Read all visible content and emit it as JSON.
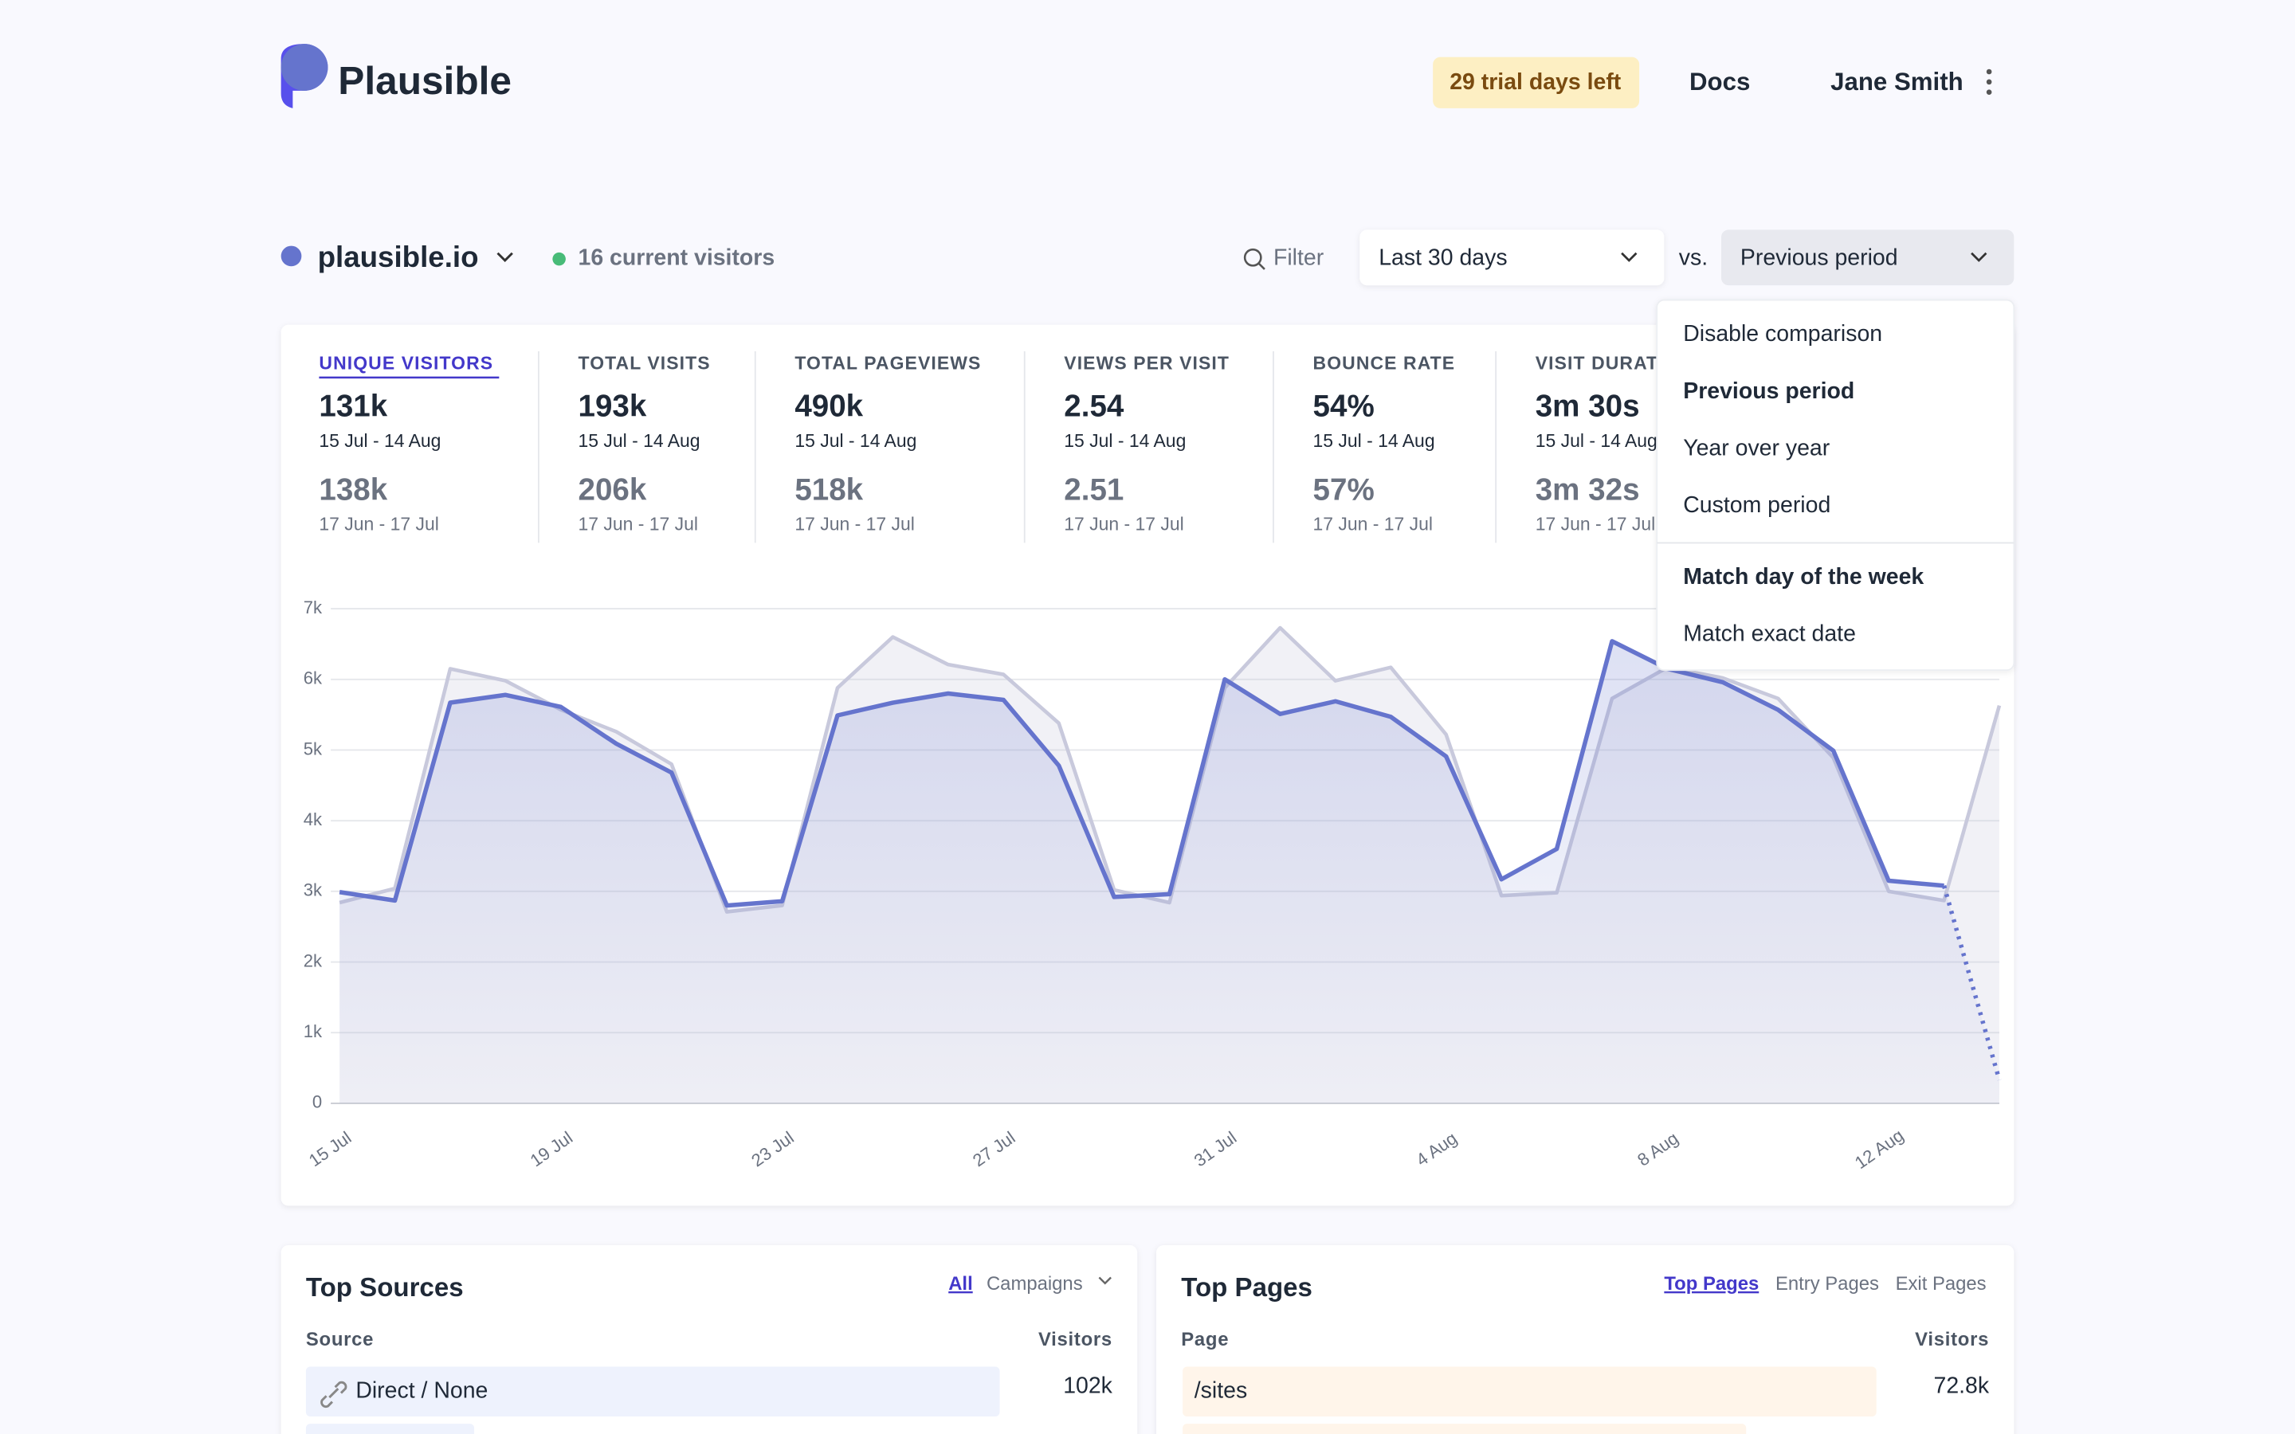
{
  "header": {
    "brand": "Plausible",
    "trial": "29 trial days left",
    "docs": "Docs",
    "user": "Jane Smith"
  },
  "site": {
    "domain": "plausible.io",
    "visitors": "16 current visitors",
    "filter": "Filter",
    "period": "Last 30 days",
    "vs": "vs.",
    "comparison": "Previous period"
  },
  "menu": {
    "items": [
      "Disable comparison",
      "Previous period",
      "Year over year",
      "Custom period"
    ],
    "match": [
      "Match day of the week",
      "Match exact date"
    ]
  },
  "metrics": [
    {
      "label": "UNIQUE VISITORS",
      "value": "131k",
      "range": "15 Jul - 14 Aug",
      "prev_value": "138k",
      "prev_range": "17 Jun - 17 Jul"
    },
    {
      "label": "TOTAL VISITS",
      "value": "193k",
      "range": "15 Jul - 14 Aug",
      "prev_value": "206k",
      "prev_range": "17 Jun - 17 Jul"
    },
    {
      "label": "TOTAL PAGEVIEWS",
      "value": "490k",
      "range": "15 Jul - 14 Aug",
      "prev_value": "518k",
      "prev_range": "17 Jun - 17 Jul"
    },
    {
      "label": "VIEWS PER VISIT",
      "value": "2.54",
      "range": "15 Jul - 14 Aug",
      "prev_value": "2.51",
      "prev_range": "17 Jun - 17 Jul"
    },
    {
      "label": "BOUNCE RATE",
      "value": "54%",
      "range": "15 Jul - 14 Aug",
      "prev_value": "57%",
      "prev_range": "17 Jun - 17 Jul"
    },
    {
      "label": "VISIT DURATION",
      "value": "3m 30s",
      "range": "15 Jul - 14 Aug",
      "prev_value": "3m 32s",
      "prev_range": "17 Jun - 17 Jul"
    }
  ],
  "chart_data": {
    "type": "line",
    "categories": [
      "15 Jul",
      null,
      null,
      null,
      "19 Jul",
      null,
      null,
      null,
      "23 Jul",
      null,
      null,
      null,
      "27 Jul",
      null,
      null,
      null,
      "31 Jul",
      null,
      null,
      null,
      "4 Aug",
      null,
      null,
      null,
      "8 Aug",
      null,
      null,
      null,
      "12 Aug",
      null,
      null
    ],
    "series": [
      {
        "color": "#6574cd",
        "values": [
          2990,
          2870,
          5670,
          5780,
          5610,
          5090,
          4680,
          2800,
          2860,
          5490,
          5670,
          5800,
          5710,
          4780,
          2920,
          2960,
          6000,
          5510,
          5690,
          5470,
          4910,
          3170,
          3600,
          6540,
          6150,
          5960,
          5570,
          4990,
          3150,
          3080,
          330
        ]
      },
      {
        "color": "#c8c9dc",
        "values": [
          2840,
          3040,
          6150,
          5980,
          5570,
          5260,
          4800,
          2710,
          2800,
          5880,
          6600,
          6210,
          6070,
          5380,
          3020,
          2840,
          5880,
          6730,
          5980,
          6170,
          5220,
          2940,
          2980,
          5730,
          6170,
          6020,
          5730,
          4890,
          3000,
          2870,
          5630
        ]
      }
    ],
    "ylim": [
      0,
      7000
    ],
    "yticks": [
      0,
      {
        "value": 1000,
        "label": "1k"
      },
      {
        "value": 2000,
        "label": "2k"
      },
      {
        "value": 3000,
        "label": "3k"
      },
      {
        "value": 4000,
        "label": "4k"
      },
      {
        "value": 5000,
        "label": "5k"
      },
      {
        "value": 6000,
        "label": "6k"
      },
      {
        "value": 7000,
        "label": "7k"
      }
    ],
    "grid": true
  },
  "top_sources": {
    "title": "Top Sources",
    "tabs": [
      "All",
      "Campaigns"
    ],
    "columns": [
      "Source",
      "Visitors"
    ],
    "rows": [
      {
        "name": "Direct / None",
        "visitors": "102k"
      }
    ]
  },
  "top_pages": {
    "title": "Top Pages",
    "tabs": [
      "Top Pages",
      "Entry Pages",
      "Exit Pages"
    ],
    "columns": [
      "Page",
      "Visitors"
    ],
    "rows": [
      {
        "name": "/sites",
        "visitors": "72.8k"
      }
    ]
  }
}
